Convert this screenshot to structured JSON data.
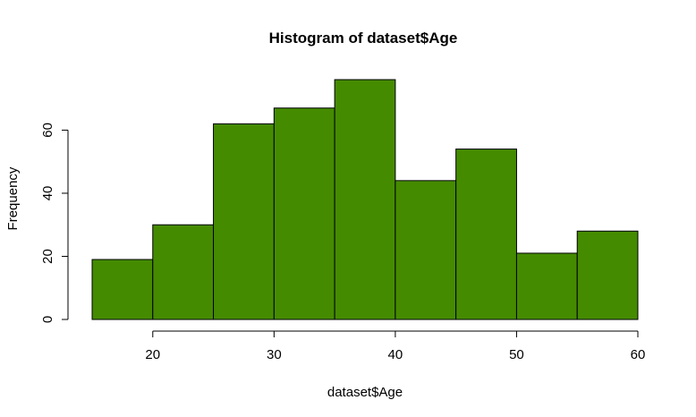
{
  "chart_data": {
    "type": "bar",
    "title": "Histogram of dataset$Age",
    "xlabel": "dataset$Age",
    "ylabel": "Frequency",
    "bar_color": "#458B00",
    "bin_edges": [
      15,
      20,
      25,
      30,
      35,
      40,
      45,
      50,
      55,
      60
    ],
    "values": [
      19,
      30,
      62,
      67,
      76,
      44,
      54,
      21,
      28
    ],
    "x_ticks": [
      20,
      30,
      40,
      50,
      60
    ],
    "y_ticks": [
      0,
      20,
      40,
      60
    ],
    "xlim": [
      15,
      60
    ],
    "ylim": [
      0,
      76
    ],
    "grid": false
  }
}
